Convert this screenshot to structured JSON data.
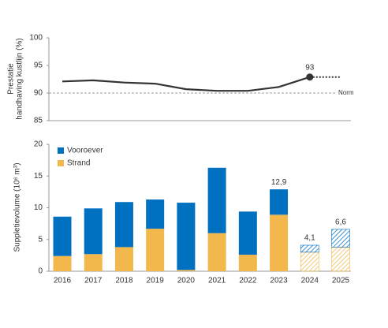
{
  "chart_data": [
    {
      "type": "line",
      "ylabel": [
        "Prestatie",
        "handhaving kustlijn (%)"
      ],
      "ylim": [
        85,
        100
      ],
      "yticks": [
        85,
        90,
        95,
        100
      ],
      "series": [
        {
          "color": "#333333",
          "style": "solid",
          "values": [
            92.1,
            92.3,
            91.9,
            91.7,
            90.7,
            90.4,
            90.4,
            91.1,
            92.9,
            null
          ]
        },
        {
          "color": "#333333",
          "style": "dotted",
          "values": [
            null,
            null,
            null,
            null,
            null,
            null,
            null,
            null,
            92.9,
            92.9
          ]
        }
      ],
      "point_label": {
        "index": 8,
        "label": "93"
      },
      "reference_line": {
        "value": 90,
        "label": "Norm",
        "color": "#999999"
      }
    },
    {
      "type": "stacked_bar",
      "ylabel": "Suppletievolume (10⁶ m³)",
      "categories": [
        "2016",
        "2017",
        "2018",
        "2019",
        "2020",
        "2021",
        "2022",
        "2023",
        "2024",
        "2025"
      ],
      "ylim": [
        0,
        20
      ],
      "yticks": [
        0,
        5,
        10,
        15,
        20
      ],
      "legend": "top-left",
      "series": [
        {
          "name": "Strand",
          "color": "#f2b84b",
          "values": [
            2.4,
            2.7,
            3.8,
            6.7,
            0.2,
            6.0,
            2.6,
            8.9,
            3.0,
            3.8
          ]
        },
        {
          "name": "Vooroever",
          "color": "#0070c0",
          "values": [
            6.2,
            7.2,
            7.1,
            4.6,
            10.6,
            10.3,
            6.8,
            4.0,
            1.1,
            2.8
          ]
        }
      ],
      "hatched": [
        false,
        false,
        false,
        false,
        false,
        false,
        false,
        false,
        true,
        true
      ],
      "total_labels": [
        null,
        null,
        null,
        null,
        null,
        null,
        null,
        "12,9",
        "4,1",
        "6,6"
      ]
    }
  ]
}
